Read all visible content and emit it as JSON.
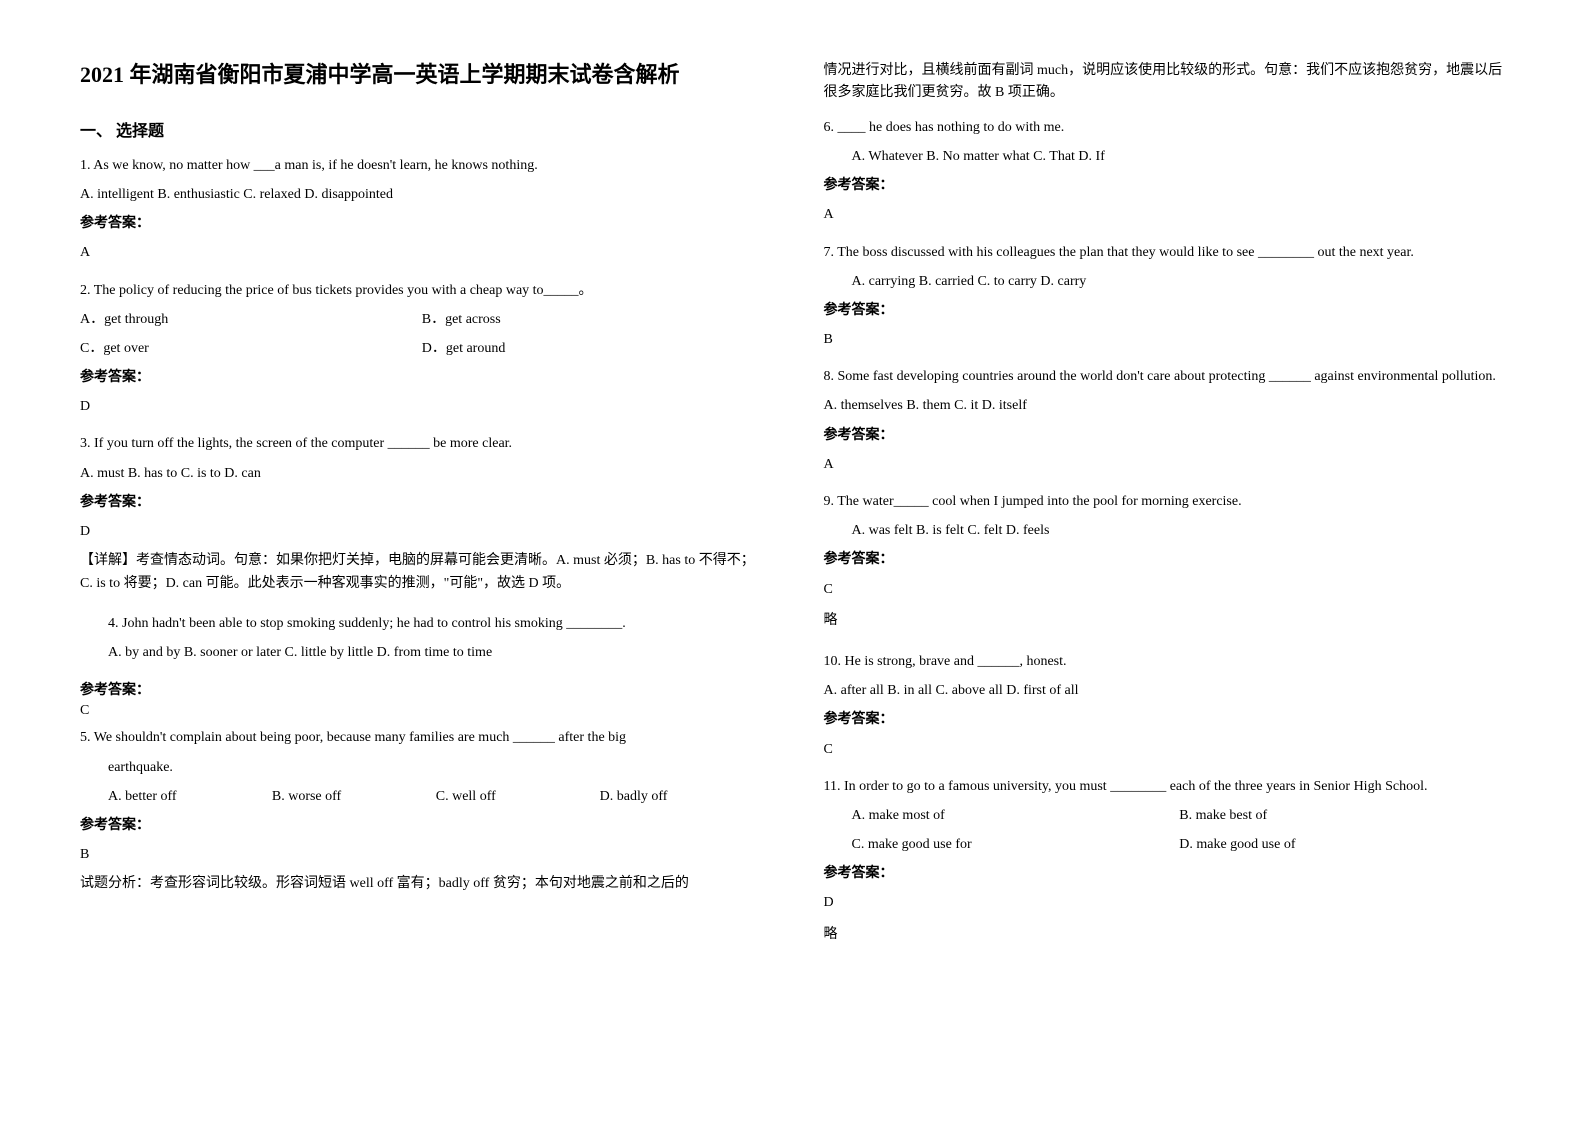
{
  "title": "2021 年湖南省衡阳市夏浦中学高一英语上学期期末试卷含解析",
  "section1": "一、 选择题",
  "q1": {
    "stem": "1. As we know, no matter how ___a man is, if he doesn't learn, he knows nothing.",
    "opts": "A. intelligent  B. enthusiastic  C. relaxed  D. disappointed",
    "ansLabel": "参考答案：",
    "ans": "A"
  },
  "q2": {
    "stem": "2. The policy of reducing the price of bus tickets provides you with a cheap way to_____。",
    "optA": "A．get through",
    "optB": "B．get across",
    "optC": "C．get over",
    "optD": "D．get around",
    "ansLabel": "参考答案：",
    "ans": "D"
  },
  "q3": {
    "stem": "3. If you turn off the lights, the screen of the computer ______ be more clear.",
    "opts": "A. must B. has to        C. is to  D. can",
    "ansLabel": "参考答案：",
    "ans": "D",
    "expl": "【详解】考查情态动词。句意：如果你把灯关掉，电脑的屏幕可能会更清晰。A. must 必须；B. has to 不得不；C. is to 将要；D. can 可能。此处表示一种客观事实的推测，\"可能\"，故选 D 项。"
  },
  "q4": {
    "stem": "4. John hadn't been able to stop smoking suddenly; he had to control his smoking ________.",
    "opts": "A. by and by    B. sooner or later  C. little by little           D. from time to time",
    "ansLabel": "参考答案：",
    "ans": "C"
  },
  "q5": {
    "stem": "5. We shouldn't complain about being poor, because many families are much ______ after the big",
    "stem2": "earthquake.",
    "optA": "A. better off",
    "optB": "B. worse off",
    "optC": "C. well off",
    "optD": "D. badly off",
    "ansLabel": "参考答案：",
    "ans": "B",
    "expl1": "试题分析：考查形容词比较级。形容词短语 well off 富有；badly off 贫穷；本句对地震之前和之后的",
    "expl2": "情况进行对比，且横线前面有副词 much，说明应该使用比较级的形式。句意：我们不应该抱怨贫穷，地震以后很多家庭比我们更贫穷。故 B 项正确。"
  },
  "q6": {
    "stem": "6. ____ he does has nothing to do with me.",
    "opts": "A. Whatever   B. No matter what   C. That   D. If",
    "ansLabel": "参考答案：",
    "ans": "A"
  },
  "q7": {
    "stem": "7. The boss discussed with his colleagues the plan that they would like to see ________ out the next year.",
    "opts": "A. carrying          B. carried       C. to carry         D. carry",
    "ansLabel": "参考答案：",
    "ans": "B"
  },
  "q8": {
    "stem": "8. Some fast developing countries around the world don't care about protecting ______ against environmental pollution.",
    "opts": "A. themselves   B. them C. it     D. itself",
    "ansLabel": "参考答案：",
    "ans": "A"
  },
  "q9": {
    "stem": "9. The water_____ cool when I jumped into the pool for morning exercise.",
    "opts": "A. was felt          B. is felt                     C. felt                 D. feels",
    "ansLabel": "参考答案：",
    "ans": "C",
    "brief": "略"
  },
  "q10": {
    "stem": "10. He is strong, brave and ______, honest.",
    "opts": "A. after all   B. in all   C. above all   D. first of all",
    "ansLabel": "参考答案：",
    "ans": "C"
  },
  "q11": {
    "stem": "11. In order to go to a famous university, you must ________ each of the three years in Senior High School.",
    "optA": "A. make most of",
    "optB": "B. make best of",
    "optC": "C. make good use for",
    "optD": "D. make good use of",
    "ansLabel": "参考答案：",
    "ans": "D",
    "brief": "略"
  }
}
